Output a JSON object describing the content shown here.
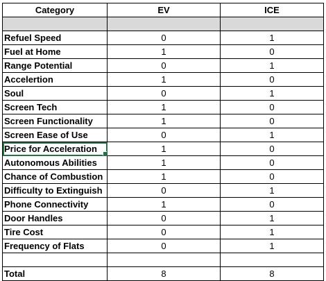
{
  "header": {
    "category": "Category",
    "ev": "EV",
    "ice": "ICE"
  },
  "rows": [
    {
      "category": "Refuel Speed",
      "ev": "0",
      "ice": "1"
    },
    {
      "category": "Fuel at Home",
      "ev": "1",
      "ice": "0"
    },
    {
      "category": "Range Potential",
      "ev": "0",
      "ice": "1"
    },
    {
      "category": "Accelertion",
      "ev": "1",
      "ice": "0"
    },
    {
      "category": "Soul",
      "ev": "0",
      "ice": "1"
    },
    {
      "category": "Screen Tech",
      "ev": "1",
      "ice": "0"
    },
    {
      "category": "Screen Functionality",
      "ev": "1",
      "ice": "0"
    },
    {
      "category": "Screen Ease of Use",
      "ev": "0",
      "ice": "1"
    },
    {
      "category": "Price for Acceleration",
      "ev": "1",
      "ice": "0"
    },
    {
      "category": "Autonomous Abilities",
      "ev": "1",
      "ice": "0"
    },
    {
      "category": "Chance of Combustion",
      "ev": "1",
      "ice": "0"
    },
    {
      "category": "Difficulty to Extinguish",
      "ev": "0",
      "ice": "1"
    },
    {
      "category": "Phone Connectivity",
      "ev": "1",
      "ice": "0"
    },
    {
      "category": "Door Handles",
      "ev": "0",
      "ice": "1"
    },
    {
      "category": "Tire Cost",
      "ev": "0",
      "ice": "1"
    },
    {
      "category": "Frequency of Flats",
      "ev": "0",
      "ice": "1"
    }
  ],
  "total": {
    "label": "Total",
    "ev": "8",
    "ice": "8"
  },
  "colors": {
    "grid": "#000000",
    "header_fill": "#d9d9d9",
    "selection": "#217346"
  }
}
